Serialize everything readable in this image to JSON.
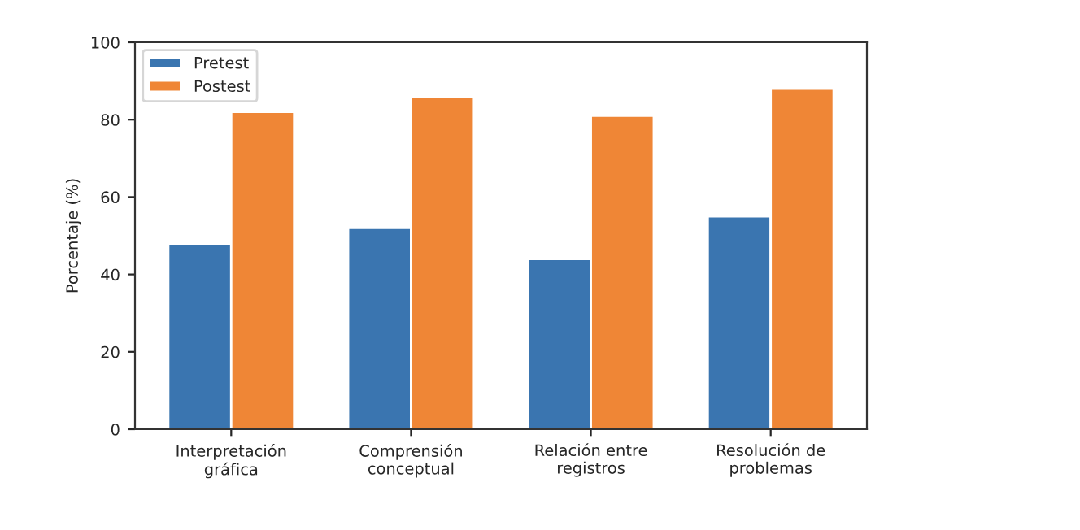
{
  "chart_data": {
    "type": "bar",
    "ylabel": "Porcentaje (%)",
    "categories": [
      "Interpretación\ngráfica",
      "Comprensión\nconceptual",
      "Relación entre\nregistros",
      "Resolución de\nproblemas"
    ],
    "series": [
      {
        "name": "Pretest",
        "color": "#3a75b0",
        "values": [
          48,
          52,
          44,
          55
        ]
      },
      {
        "name": "Postest",
        "color": "#ef8636",
        "values": [
          82,
          86,
          81,
          88
        ]
      }
    ],
    "ylim": [
      0,
      100
    ],
    "yticks": [
      0,
      20,
      40,
      60,
      80,
      100
    ],
    "grid": false,
    "legend": "top left"
  }
}
